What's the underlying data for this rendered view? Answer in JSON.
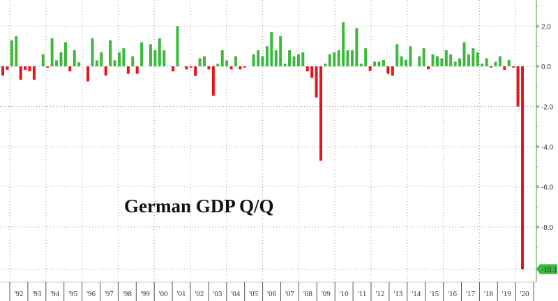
{
  "chart_data": {
    "type": "bar",
    "title": "German GDP Q/Q",
    "xlabel": "",
    "ylabel": "",
    "ylim": [
      -10.6,
      3.2
    ],
    "grid": true,
    "y_ticks": [
      "2.0",
      "0.0",
      "-2.0",
      "-4.0",
      "-6.0",
      "-8.0"
    ],
    "y_tick_values": [
      2,
      0,
      -2,
      -4,
      -6,
      -8
    ],
    "last_value_label": "-10.1",
    "x_tick_labels": [
      "'92",
      "'93",
      "'94",
      "'95",
      "'96",
      "'97",
      "'98",
      "'99",
      "'00",
      "'01",
      "'02",
      "'03",
      "'04",
      "'05",
      "'06",
      "'07",
      "'08",
      "'09",
      "'10",
      "'11",
      "'12",
      "'13",
      "'14",
      "'15",
      "'16",
      "'17",
      "'18",
      "'19",
      "'20"
    ],
    "first_quarter": "1991Q2",
    "last_quarter": "2020Q2",
    "values": [
      -0.46,
      -0.17,
      1.3,
      1.5,
      -0.67,
      -0.17,
      -0.25,
      -0.67,
      0.0,
      0.6,
      -0.06,
      1.4,
      0.3,
      0.7,
      1.2,
      -0.25,
      0.8,
      0.2,
      0.0,
      -0.75,
      1.4,
      0.3,
      0.7,
      -0.46,
      1.3,
      0.3,
      0.7,
      0.9,
      -0.37,
      0.5,
      -0.37,
      1.2,
      0.0,
      1.1,
      0.8,
      1.4,
      0.8,
      0.0,
      -0.25,
      2.0,
      0.0,
      -0.15,
      -0.06,
      -0.48,
      0.4,
      0.5,
      -0.15,
      -1.46,
      0.13,
      0.8,
      0.3,
      -0.15,
      0.5,
      -0.15,
      -0.06,
      0.0,
      0.6,
      0.8,
      0.5,
      1.0,
      1.7,
      0.8,
      1.5,
      0.13,
      0.8,
      0.5,
      0.6,
      0.7,
      -0.25,
      -0.57,
      -1.55,
      -4.7,
      0.13,
      0.6,
      0.7,
      0.8,
      2.2,
      0.8,
      0.8,
      1.9,
      0.13,
      0.9,
      -0.23,
      0.23,
      0.23,
      0.32,
      -0.37,
      -0.47,
      1.1,
      0.5,
      0.32,
      1.0,
      0.0,
      0.5,
      0.9,
      -0.15,
      0.6,
      0.5,
      0.4,
      0.8,
      0.6,
      0.23,
      0.4,
      1.2,
      0.6,
      0.9,
      0.7,
      0.13,
      0.4,
      -0.06,
      0.23,
      0.5,
      -0.17,
      0.32,
      -0.06,
      -2.0,
      -10.1
    ],
    "colors": {
      "positive": "#3cb93c",
      "negative": "#e3141b",
      "axis": "#7cc47c",
      "badge": "#3cb93c"
    }
  }
}
